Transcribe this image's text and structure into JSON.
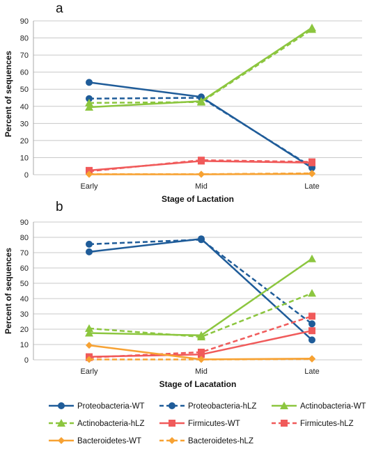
{
  "chart_data": [
    {
      "panel_label": "a",
      "type": "line",
      "categories": [
        "Early",
        "Mid",
        "Late"
      ],
      "xlabel": "Stage of Lactation",
      "ylabel": "Percent of sequences",
      "ylim": [
        0,
        90
      ],
      "yticks": [
        0,
        10,
        20,
        30,
        40,
        50,
        60,
        70,
        80,
        90
      ],
      "grid": "horizontal",
      "series": [
        {
          "name": "Proteobacteria-WT",
          "values": [
            54,
            45.5,
            4
          ],
          "color": "#1f5c99",
          "dash": false,
          "marker": "circle"
        },
        {
          "name": "Proteobacteria-hLZ",
          "values": [
            44.5,
            45,
            4.5
          ],
          "color": "#1f5c99",
          "dash": true,
          "marker": "circle"
        },
        {
          "name": "Actinobacteria-WT",
          "values": [
            39.5,
            43,
            86
          ],
          "color": "#8cc63f",
          "dash": false,
          "marker": "triangle"
        },
        {
          "name": "Actinobacteria-hLZ",
          "values": [
            42,
            42.5,
            85
          ],
          "color": "#8cc63f",
          "dash": true,
          "marker": "triangle"
        },
        {
          "name": "Firmicutes-WT",
          "values": [
            2.5,
            8,
            7
          ],
          "color": "#f05a5a",
          "dash": false,
          "marker": "square"
        },
        {
          "name": "Firmicutes-hLZ",
          "values": [
            2,
            8.5,
            7.5
          ],
          "color": "#f05a5a",
          "dash": true,
          "marker": "square"
        },
        {
          "name": "Bacteroidetes-WT",
          "values": [
            0.2,
            0.2,
            0.5
          ],
          "color": "#f7a233",
          "dash": false,
          "marker": "diamond"
        },
        {
          "name": "Bacteroidetes-hLZ",
          "values": [
            0.3,
            0.3,
            0.8
          ],
          "color": "#f7a233",
          "dash": true,
          "marker": "diamond"
        }
      ]
    },
    {
      "panel_label": "b",
      "type": "line",
      "categories": [
        "Early",
        "Mid",
        "Late"
      ],
      "xlabel": "Stage of Lacatation",
      "ylabel": "Percent of sequences",
      "ylim": [
        0,
        90
      ],
      "yticks": [
        0,
        10,
        20,
        30,
        40,
        50,
        60,
        70,
        80,
        90
      ],
      "grid": "horizontal",
      "series": [
        {
          "name": "Proteobacteria-WT",
          "values": [
            70.5,
            79,
            13
          ],
          "color": "#1f5c99",
          "dash": false,
          "marker": "circle"
        },
        {
          "name": "Proteobacteria-hLZ",
          "values": [
            75.5,
            78.5,
            23.5
          ],
          "color": "#1f5c99",
          "dash": true,
          "marker": "circle"
        },
        {
          "name": "Actinobacteria-WT",
          "values": [
            17.5,
            16,
            66
          ],
          "color": "#8cc63f",
          "dash": false,
          "marker": "triangle"
        },
        {
          "name": "Actinobacteria-hLZ",
          "values": [
            20.5,
            15,
            43.5
          ],
          "color": "#8cc63f",
          "dash": true,
          "marker": "triangle"
        },
        {
          "name": "Firmicutes-WT",
          "values": [
            2,
            3.5,
            19
          ],
          "color": "#f05a5a",
          "dash": false,
          "marker": "square"
        },
        {
          "name": "Firmicutes-hLZ",
          "values": [
            1.5,
            5,
            28.5
          ],
          "color": "#f05a5a",
          "dash": true,
          "marker": "square"
        },
        {
          "name": "Bacteroidetes-WT",
          "values": [
            9.5,
            0.3,
            0.8
          ],
          "color": "#f7a233",
          "dash": false,
          "marker": "diamond"
        },
        {
          "name": "Bacteroidetes-hLZ",
          "values": [
            0.2,
            0.2,
            0.5
          ],
          "color": "#f7a233",
          "dash": true,
          "marker": "diamond"
        }
      ]
    }
  ],
  "legend": {
    "placement": "bottom",
    "entries": [
      {
        "name": "Proteobacteria-WT",
        "color": "#1f5c99",
        "dash": false,
        "marker": "circle"
      },
      {
        "name": "Proteobacteria-hLZ",
        "color": "#1f5c99",
        "dash": true,
        "marker": "circle"
      },
      {
        "name": "Actinobacteria-WT",
        "color": "#8cc63f",
        "dash": false,
        "marker": "triangle"
      },
      {
        "name": "Actinobacteria-hLZ",
        "color": "#8cc63f",
        "dash": true,
        "marker": "triangle"
      },
      {
        "name": "Firmicutes-WT",
        "color": "#f05a5a",
        "dash": false,
        "marker": "square"
      },
      {
        "name": "Firmicutes-hLZ",
        "color": "#f05a5a",
        "dash": true,
        "marker": "square"
      },
      {
        "name": "Bacteroidetes-WT",
        "color": "#f7a233",
        "dash": false,
        "marker": "diamond"
      },
      {
        "name": "Bacteroidetes-hLZ",
        "color": "#f7a233",
        "dash": true,
        "marker": "diamond"
      }
    ]
  }
}
